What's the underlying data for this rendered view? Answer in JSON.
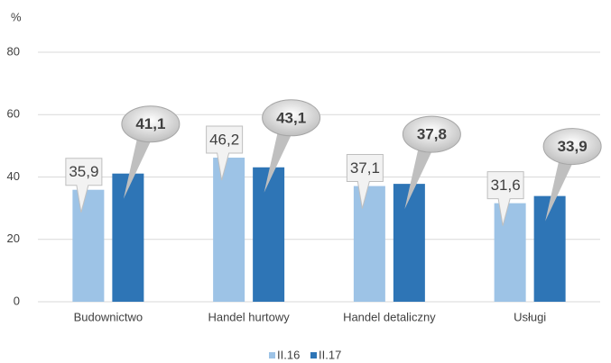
{
  "chart_data": {
    "type": "bar",
    "y_axis_label": "%",
    "categories": [
      "Budownictwo",
      "Handel hurtowy",
      "Handel detaliczny",
      "Usługi"
    ],
    "series": [
      {
        "name": "II.16",
        "color": "#9dc3e6",
        "values": [
          35.9,
          46.2,
          37.1,
          31.6
        ],
        "value_labels": [
          "35,9",
          "46,2",
          "37,1",
          "31,6"
        ]
      },
      {
        "name": "II.17",
        "color": "#2e75b6",
        "values": [
          41.1,
          43.1,
          37.8,
          33.9
        ],
        "value_labels": [
          "41,1",
          "43,1",
          "37,8",
          "33,9"
        ]
      }
    ],
    "ylim": [
      0,
      80
    ],
    "yticks": [
      0,
      20,
      40,
      60,
      80
    ],
    "grid": true,
    "legend": "bottom"
  }
}
